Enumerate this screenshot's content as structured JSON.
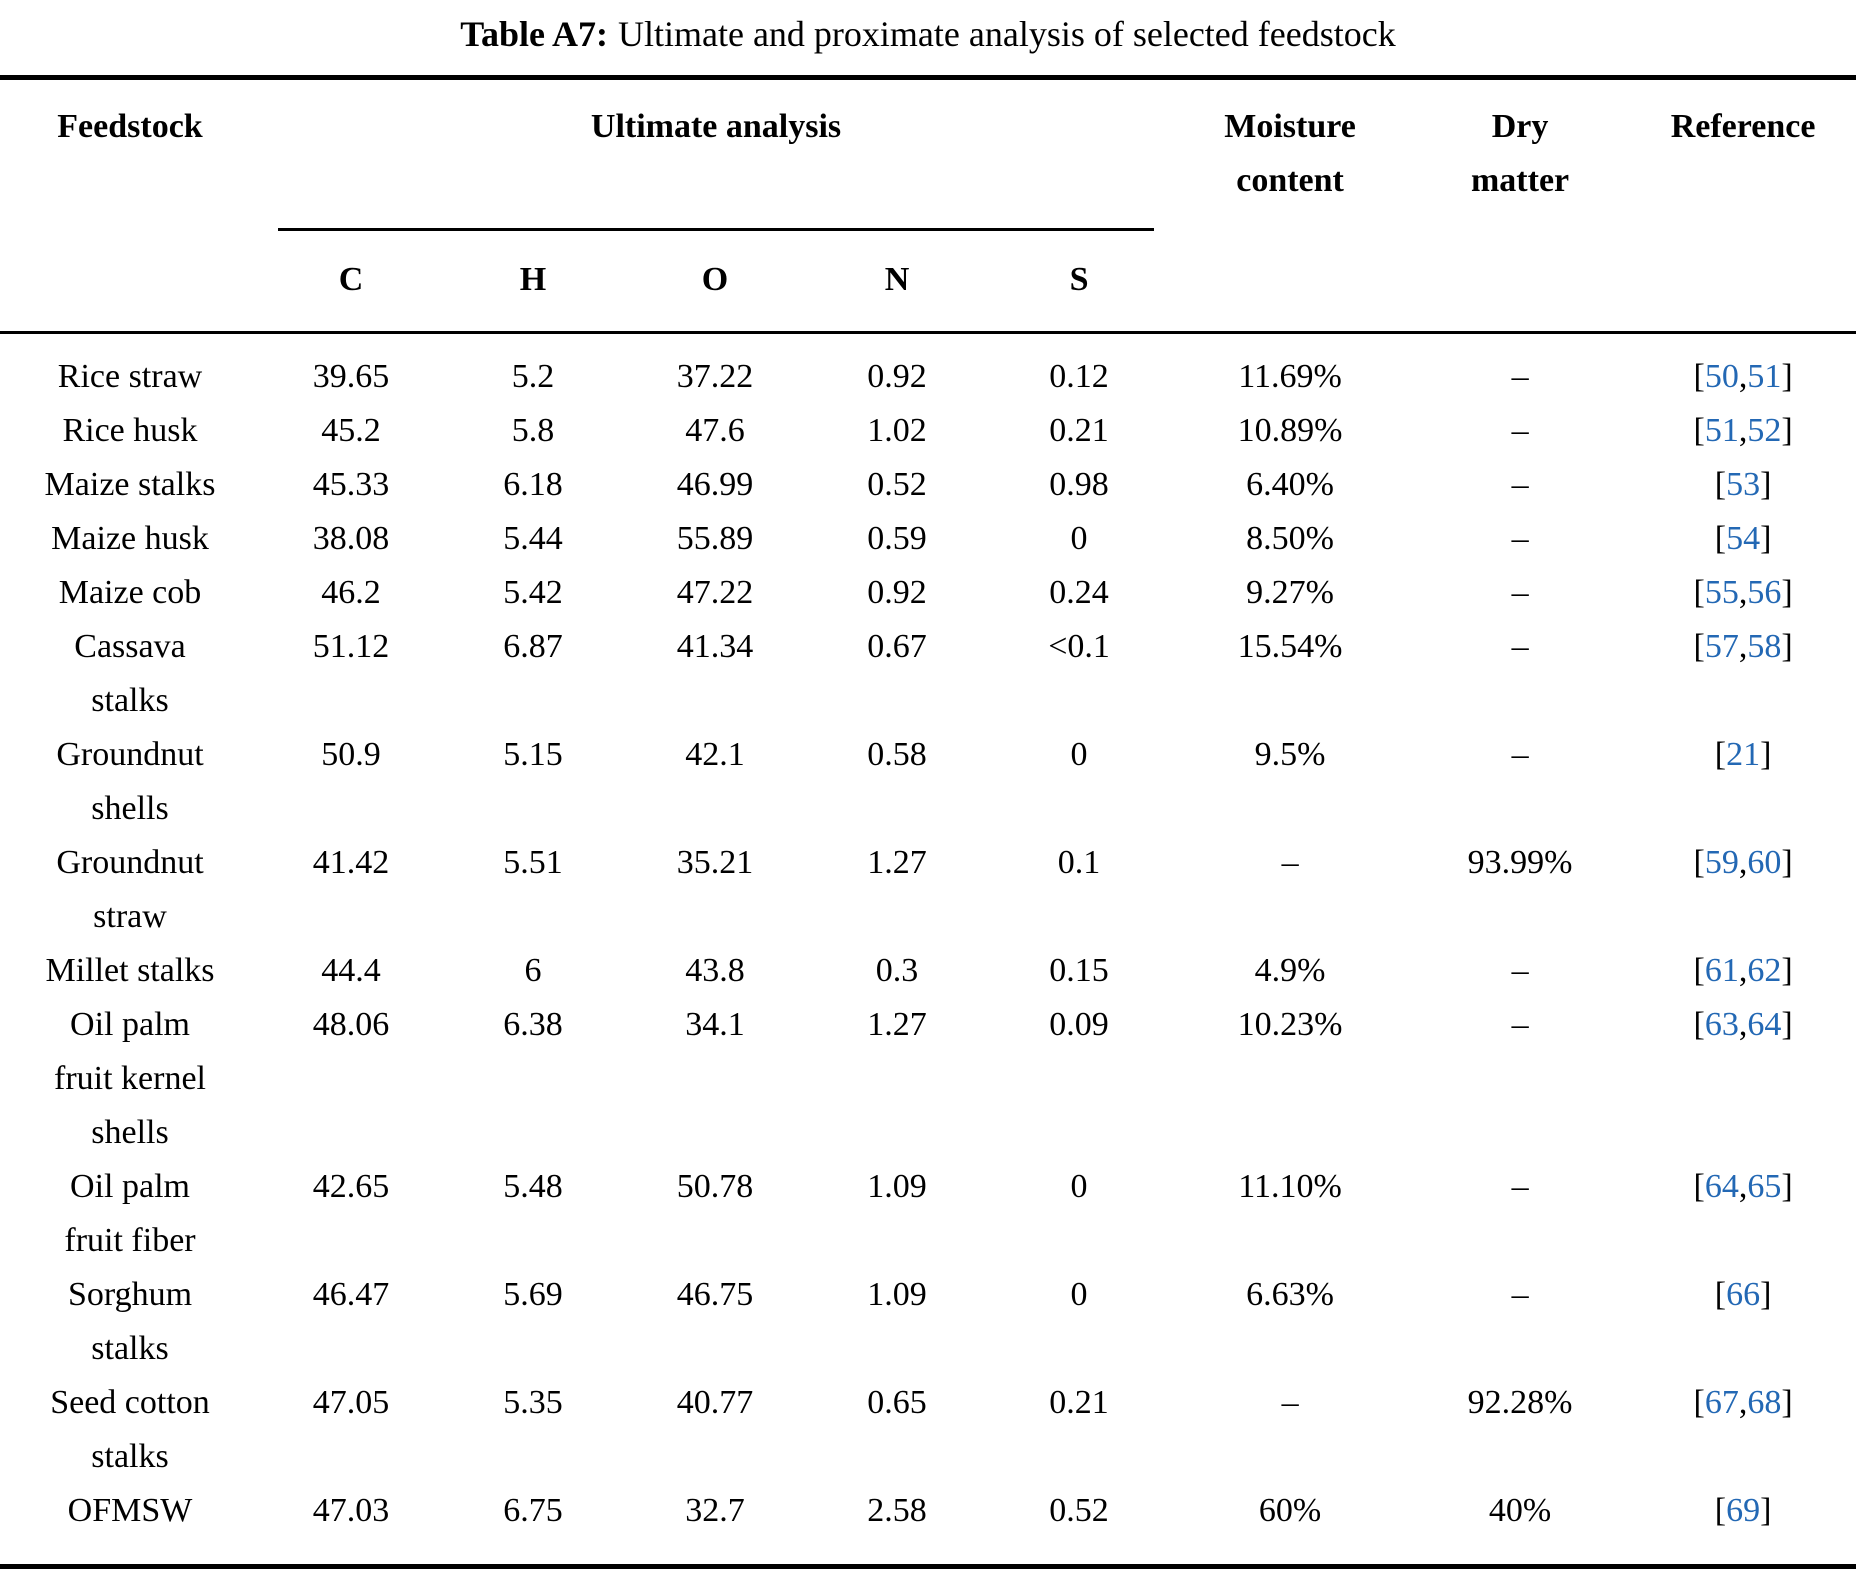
{
  "title": {
    "label": "Table A7:",
    "text": "Ultimate and proximate analysis of selected feedstock"
  },
  "colors": {
    "citation_blue": "#2368b4",
    "text": "#000000",
    "rule": "#000000"
  },
  "table": {
    "headers": {
      "feedstock": "Feedstock",
      "ultimate_analysis": "Ultimate analysis",
      "elements": [
        "C",
        "H",
        "O",
        "N",
        "S"
      ],
      "moisture": "Moisture\ncontent",
      "dry_matter": "Dry\nmatter",
      "reference": "Reference"
    },
    "rows": [
      {
        "feedstock": "Rice straw",
        "c": "39.65",
        "h": "5.2",
        "o": "37.22",
        "n": "0.92",
        "s": "0.12",
        "moisture": "11.69%",
        "dry": "–",
        "refs": [
          "50",
          "51"
        ]
      },
      {
        "feedstock": "Rice husk",
        "c": "45.2",
        "h": "5.8",
        "o": "47.6",
        "n": "1.02",
        "s": "0.21",
        "moisture": "10.89%",
        "dry": "–",
        "refs": [
          "51",
          "52"
        ]
      },
      {
        "feedstock": "Maize stalks",
        "c": "45.33",
        "h": "6.18",
        "o": "46.99",
        "n": "0.52",
        "s": "0.98",
        "moisture": "6.40%",
        "dry": "–",
        "refs": [
          "53"
        ]
      },
      {
        "feedstock": "Maize husk",
        "c": "38.08",
        "h": "5.44",
        "o": "55.89",
        "n": "0.59",
        "s": "0",
        "moisture": "8.50%",
        "dry": "–",
        "refs": [
          "54"
        ]
      },
      {
        "feedstock": "Maize cob",
        "c": "46.2",
        "h": "5.42",
        "o": "47.22",
        "n": "0.92",
        "s": "0.24",
        "moisture": "9.27%",
        "dry": "–",
        "refs": [
          "55",
          "56"
        ]
      },
      {
        "feedstock": "Cassava\nstalks",
        "c": "51.12",
        "h": "6.87",
        "o": "41.34",
        "n": "0.67",
        "s": "<0.1",
        "moisture": "15.54%",
        "dry": "–",
        "refs": [
          "57",
          "58"
        ]
      },
      {
        "feedstock": "Groundnut\nshells",
        "c": "50.9",
        "h": "5.15",
        "o": "42.1",
        "n": "0.58",
        "s": "0",
        "moisture": "9.5%",
        "dry": "–",
        "refs": [
          "21"
        ]
      },
      {
        "feedstock": "Groundnut\nstraw",
        "c": "41.42",
        "h": "5.51",
        "o": "35.21",
        "n": "1.27",
        "s": "0.1",
        "moisture": "–",
        "dry": "93.99%",
        "refs": [
          "59",
          "60"
        ]
      },
      {
        "feedstock": "Millet stalks",
        "c": "44.4",
        "h": "6",
        "o": "43.8",
        "n": "0.3",
        "s": "0.15",
        "moisture": "4.9%",
        "dry": "–",
        "refs": [
          "61",
          "62"
        ]
      },
      {
        "feedstock": "Oil palm\nfruit kernel\nshells",
        "c": "48.06",
        "h": "6.38",
        "o": "34.1",
        "n": "1.27",
        "s": "0.09",
        "moisture": "10.23%",
        "dry": "–",
        "refs": [
          "63",
          "64"
        ]
      },
      {
        "feedstock": "Oil palm\nfruit fiber",
        "c": "42.65",
        "h": "5.48",
        "o": "50.78",
        "n": "1.09",
        "s": "0",
        "moisture": "11.10%",
        "dry": "–",
        "refs": [
          "64",
          "65"
        ]
      },
      {
        "feedstock": "Sorghum\nstalks",
        "c": "46.47",
        "h": "5.69",
        "o": "46.75",
        "n": "1.09",
        "s": "0",
        "moisture": "6.63%",
        "dry": "–",
        "refs": [
          "66"
        ]
      },
      {
        "feedstock": "Seed cotton\nstalks",
        "c": "47.05",
        "h": "5.35",
        "o": "40.77",
        "n": "0.65",
        "s": "0.21",
        "moisture": "–",
        "dry": "92.28%",
        "refs": [
          "67",
          "68"
        ]
      },
      {
        "feedstock": "OFMSW",
        "c": "47.03",
        "h": "6.75",
        "o": "32.7",
        "n": "2.58",
        "s": "0.52",
        "moisture": "60%",
        "dry": "40%",
        "refs": [
          "69"
        ]
      }
    ]
  }
}
